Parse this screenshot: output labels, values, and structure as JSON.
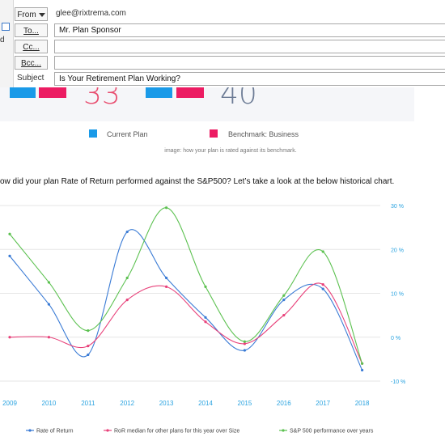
{
  "email": {
    "left_stub_text": "d",
    "from_label": "From",
    "from_value": "glee@rixtrema.com",
    "to_label": "To...",
    "to_value": "Mr. Plan Sponsor",
    "cc_label": "Cc...",
    "cc_value": "",
    "bcc_label": "Bcc...",
    "bcc_value": "",
    "subject_label": "Subject",
    "subject_value": "Is Your Retirement Plan Working?"
  },
  "score_panel": {
    "current_plan_score": "33",
    "benchmark_score": "40",
    "colors": {
      "current": "#1a9ae8",
      "benchmark": "#ec1c63",
      "score_current": "#e84d6f",
      "score_benchmark": "#6c7b95"
    }
  },
  "legend_top": {
    "current_plan": "Current Plan",
    "benchmark": "Benchmark: Business"
  },
  "caption": "image: how your plan is rated against its benchmark.",
  "question": "ow did your plan Rate of Return performed against the S&P500? Let’s take a look at the below historical chart.",
  "chart_data": {
    "type": "line",
    "x": [
      "2009",
      "2010",
      "2011",
      "2012",
      "2013",
      "2014",
      "2015",
      "2016",
      "2017",
      "2018"
    ],
    "y_ticks": [
      "30 %",
      "20 %",
      "10 %",
      "0 %",
      "-10 %"
    ],
    "ylim": [
      -10,
      30
    ],
    "series": [
      {
        "name": "Rate of Return",
        "color": "#3a7bd5",
        "values": [
          18.5,
          7.5,
          -4,
          24,
          13.5,
          4.5,
          -3,
          8.5,
          11,
          -7.5
        ]
      },
      {
        "name": "RoR median for other plans for this year over Size",
        "color": "#e8417a",
        "values": [
          0,
          0,
          -2,
          8.5,
          11.5,
          3.5,
          -1.5,
          5,
          12,
          -6
        ]
      },
      {
        "name": "S&P 500 performance over years",
        "color": "#5cc150",
        "values": [
          23.5,
          12.5,
          1.5,
          13.5,
          29.5,
          11.5,
          -1,
          9.5,
          19.5,
          -6
        ]
      }
    ]
  }
}
